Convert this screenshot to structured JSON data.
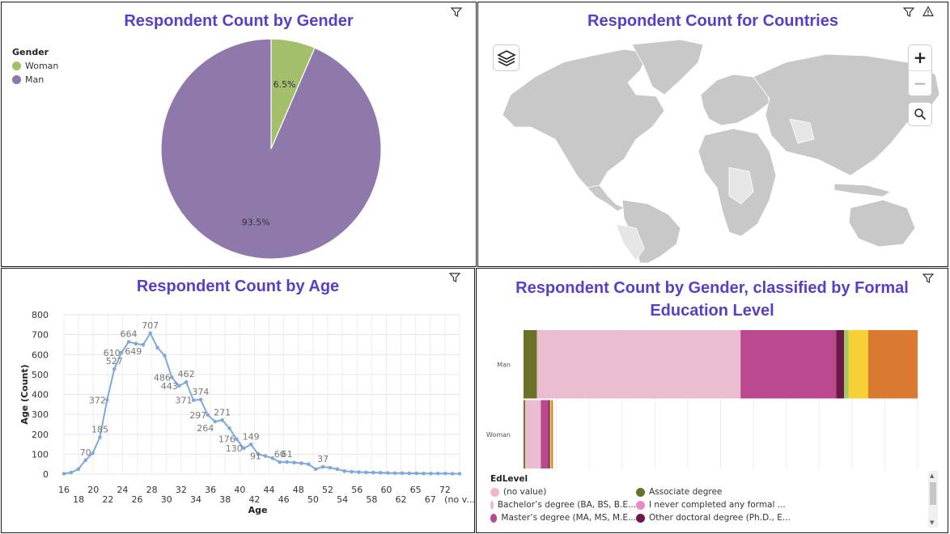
{
  "pie_panel": {
    "title": "Respondent Count by Gender",
    "legend_title": "Gender"
  },
  "map_panel": {
    "title": "Respondent Count for Countries",
    "icons": [
      "layers-icon",
      "zoom-in-icon",
      "zoom-out-icon",
      "search-icon",
      "filter-icon",
      "warning-icon"
    ]
  },
  "age_panel": {
    "title": "Respondent Count by Age"
  },
  "edu_panel": {
    "title_line1": "Respondent Count by Gender, classified by Formal",
    "title_line2": "Education Level",
    "legend_title": "EdLevel"
  },
  "chart_data": [
    {
      "type": "pie",
      "title": "Respondent Count by Gender",
      "legend_title": "Gender",
      "slices": [
        {
          "label": "Woman",
          "value": 6.5,
          "display": "6.5%",
          "color": "#a3bf6b"
        },
        {
          "label": "Man",
          "value": 93.5,
          "display": "93.5%",
          "color": "#8f79ab"
        }
      ]
    },
    {
      "type": "line",
      "title": "Respondent Count by Age",
      "xlabel": "Age",
      "ylabel": "Age (Count)",
      "ylim": [
        0,
        800
      ],
      "yticks": [
        0,
        100,
        200,
        300,
        400,
        500,
        600,
        700,
        800
      ],
      "x_ticks_row1": [
        "16",
        "20",
        "24",
        "28",
        "32",
        "36",
        "40",
        "44",
        "48",
        "52",
        "56",
        "60",
        "65",
        "72"
      ],
      "x_ticks_row2": [
        "18",
        "22",
        "26",
        "30",
        "34",
        "38",
        "42",
        "46",
        "50",
        "54",
        "58",
        "62",
        "67",
        "(no v..."
      ],
      "color": "#7fa8dc",
      "values": [
        2,
        8,
        25,
        70,
        105,
        185,
        372,
        527,
        610,
        664,
        655,
        649,
        707,
        635,
        595,
        486,
        443,
        462,
        371,
        374,
        297,
        264,
        271,
        230,
        176,
        130,
        149,
        100,
        91,
        80,
        60,
        61,
        58,
        55,
        50,
        25,
        37,
        32,
        25,
        15,
        12,
        10,
        9,
        8,
        7,
        6,
        5,
        5,
        4,
        4,
        3,
        3,
        3,
        3,
        2,
        2
      ],
      "point_labels": [
        {
          "index": 3,
          "text": "70"
        },
        {
          "index": 5,
          "text": "185"
        },
        {
          "index": 6,
          "text": "372"
        },
        {
          "index": 7,
          "text": "527"
        },
        {
          "index": 8,
          "text": "610"
        },
        {
          "index": 9,
          "text": "664"
        },
        {
          "index": 11,
          "text": "649"
        },
        {
          "index": 12,
          "text": "707"
        },
        {
          "index": 15,
          "text": "486"
        },
        {
          "index": 16,
          "text": "443"
        },
        {
          "index": 17,
          "text": "462"
        },
        {
          "index": 18,
          "text": "371"
        },
        {
          "index": 19,
          "text": "374"
        },
        {
          "index": 20,
          "text": "297"
        },
        {
          "index": 21,
          "text": "264"
        },
        {
          "index": 22,
          "text": "271"
        },
        {
          "index": 24,
          "text": "176"
        },
        {
          "index": 25,
          "text": "130"
        },
        {
          "index": 26,
          "text": "149"
        },
        {
          "index": 28,
          "text": "91"
        },
        {
          "index": 30,
          "text": "60"
        },
        {
          "index": 31,
          "text": "61"
        },
        {
          "index": 36,
          "text": "37"
        }
      ]
    },
    {
      "type": "bar",
      "orientation": "horizontal",
      "stacked": true,
      "title": "Respondent Count by Gender, classified by Formal Education Level",
      "categories": [
        "Man",
        "Woman"
      ],
      "series": [
        {
          "name": "Associate degree",
          "color": "#6b7228",
          "values": [
            1700,
            200
          ]
        },
        {
          "name": "Bachelor's degree (BA, BS, B.E...",
          "color": "#e9bcd0",
          "values": [
            26000,
            2000
          ]
        },
        {
          "name": "I never completed any formal ...",
          "color": "#e78abf",
          "values": [
            0,
            0
          ]
        },
        {
          "name": "Master's degree (MA, MS, M.E...",
          "color": "#b9488e",
          "values": [
            12200,
            1000
          ]
        },
        {
          "name": "Other doctoral degree (Ph.D., E...",
          "color": "#6e1848",
          "values": [
            1000,
            150
          ]
        },
        {
          "name": "",
          "color": "#a3c968",
          "values": [
            600,
            50
          ]
        },
        {
          "name": "",
          "color": "#f6d035",
          "values": [
            2500,
            150
          ]
        },
        {
          "name": "",
          "color": "#d97a30",
          "values": [
            6300,
            200
          ]
        }
      ],
      "xlim": [
        0,
        50300
      ],
      "legend_items": [
        {
          "label": "(no value)",
          "color": "#f2b6cc"
        },
        {
          "label": "Associate degree",
          "color": "#6b7228"
        },
        {
          "label": "Bachelor’s degree (BA, BS, B.E...",
          "color": "#e9bcd0"
        },
        {
          "label": "I never completed any formal ...",
          "color": "#e78abf"
        },
        {
          "label": "Master’s degree (MA, MS, M.E...",
          "color": "#b9488e"
        },
        {
          "label": "Other doctoral degree (Ph.D., E...",
          "color": "#6e1848"
        }
      ]
    }
  ]
}
